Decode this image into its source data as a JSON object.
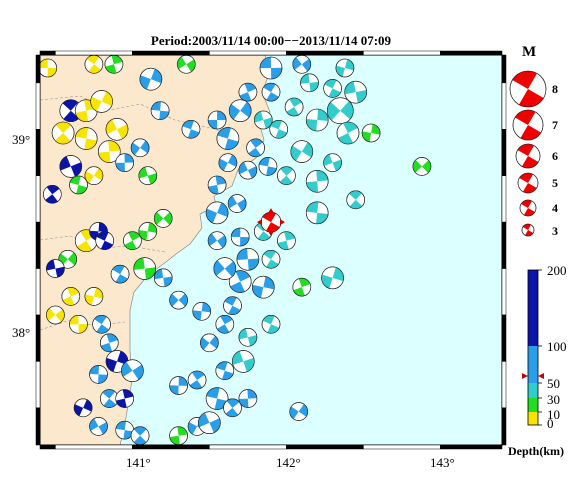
{
  "title": "Period:2003/11/14 00:00−−2013/11/14 07:09",
  "axes": {
    "lat_labels": [
      "39°",
      "38°"
    ],
    "lon_labels": [
      "141°",
      "142°",
      "143°"
    ]
  },
  "magnitude_legend": {
    "title": "M",
    "items": [
      "8",
      "7",
      "6",
      "5",
      "4",
      "3"
    ]
  },
  "depth_legend": {
    "title": "Depth(km)",
    "ticks": [
      "200",
      "100",
      "50",
      "30",
      "10",
      "0"
    ],
    "colors": {
      "0-10": "#f7e400",
      "10-30": "#22dd22",
      "30-50": "#33cccc",
      "50-100": "#2a9ee8",
      "100-200": "#0b14a8"
    }
  },
  "colors": {
    "sea": "#dcffff",
    "land": "#fce8cc",
    "highlight": "#ee0000"
  },
  "chart_data": {
    "type": "scatter",
    "x_axis": "longitude",
    "y_axis": "latitude",
    "xlim": [
      140.4,
      143.4
    ],
    "ylim": [
      37.3,
      39.4
    ],
    "highlight_event": {
      "lon": 141.9,
      "lat": 38.5,
      "magnitude": 5,
      "color": "red"
    },
    "events": [
      {
        "lon": 140.45,
        "lat": 39.33,
        "m": 3,
        "c": "yellow"
      },
      {
        "lon": 140.75,
        "lat": 39.35,
        "m": 3,
        "c": "yellow"
      },
      {
        "lon": 140.88,
        "lat": 39.35,
        "m": 3,
        "c": "green"
      },
      {
        "lon": 141.12,
        "lat": 39.27,
        "m": 4,
        "c": "blue"
      },
      {
        "lon": 141.35,
        "lat": 39.35,
        "m": 3,
        "c": "green"
      },
      {
        "lon": 141.18,
        "lat": 39.1,
        "m": 3,
        "c": "blue"
      },
      {
        "lon": 140.6,
        "lat": 39.1,
        "m": 4,
        "c": "dblue"
      },
      {
        "lon": 140.7,
        "lat": 39.1,
        "m": 4,
        "c": "yellow"
      },
      {
        "lon": 140.8,
        "lat": 39.15,
        "m": 4,
        "c": "yellow"
      },
      {
        "lon": 140.9,
        "lat": 39.0,
        "m": 4,
        "c": "yellow"
      },
      {
        "lon": 140.7,
        "lat": 38.95,
        "m": 4,
        "c": "yellow"
      },
      {
        "lon": 140.55,
        "lat": 38.98,
        "m": 4,
        "c": "yellow"
      },
      {
        "lon": 140.85,
        "lat": 38.88,
        "m": 4,
        "c": "yellow"
      },
      {
        "lon": 140.75,
        "lat": 38.75,
        "m": 3,
        "c": "yellow"
      },
      {
        "lon": 140.6,
        "lat": 38.8,
        "m": 4,
        "c": "dblue"
      },
      {
        "lon": 140.65,
        "lat": 38.7,
        "m": 3,
        "c": "green"
      },
      {
        "lon": 140.48,
        "lat": 38.65,
        "m": 3,
        "c": "dblue"
      },
      {
        "lon": 140.95,
        "lat": 38.82,
        "m": 3,
        "c": "blue"
      },
      {
        "lon": 141.05,
        "lat": 38.9,
        "m": 3,
        "c": "blue"
      },
      {
        "lon": 141.1,
        "lat": 38.75,
        "m": 3,
        "c": "green"
      },
      {
        "lon": 141.38,
        "lat": 39.0,
        "m": 3,
        "c": "blue"
      },
      {
        "lon": 140.7,
        "lat": 38.4,
        "m": 4,
        "c": "yellow"
      },
      {
        "lon": 140.78,
        "lat": 38.45,
        "m": 3,
        "c": "dblue"
      },
      {
        "lon": 140.58,
        "lat": 38.3,
        "m": 3,
        "c": "green"
      },
      {
        "lon": 140.5,
        "lat": 38.25,
        "m": 3,
        "c": "dblue"
      },
      {
        "lon": 140.82,
        "lat": 38.4,
        "m": 3,
        "c": "dblue"
      },
      {
        "lon": 141.0,
        "lat": 38.4,
        "m": 3,
        "c": "green"
      },
      {
        "lon": 141.1,
        "lat": 38.45,
        "m": 3,
        "c": "green"
      },
      {
        "lon": 141.2,
        "lat": 38.52,
        "m": 3,
        "c": "green"
      },
      {
        "lon": 141.08,
        "lat": 38.25,
        "m": 4,
        "c": "green"
      },
      {
        "lon": 140.92,
        "lat": 38.22,
        "m": 3,
        "c": "blue"
      },
      {
        "lon": 140.6,
        "lat": 38.1,
        "m": 3,
        "c": "yellow"
      },
      {
        "lon": 140.75,
        "lat": 38.1,
        "m": 3,
        "c": "yellow"
      },
      {
        "lon": 140.5,
        "lat": 38.0,
        "m": 3,
        "c": "yellow"
      },
      {
        "lon": 140.65,
        "lat": 37.95,
        "m": 3,
        "c": "yellow"
      },
      {
        "lon": 140.8,
        "lat": 37.95,
        "m": 3,
        "c": "blue"
      },
      {
        "lon": 140.85,
        "lat": 37.85,
        "m": 3,
        "c": "blue"
      },
      {
        "lon": 140.9,
        "lat": 37.75,
        "m": 4,
        "c": "dblue"
      },
      {
        "lon": 141.0,
        "lat": 37.7,
        "m": 4,
        "c": "blue"
      },
      {
        "lon": 140.78,
        "lat": 37.68,
        "m": 3,
        "c": "blue"
      },
      {
        "lon": 140.85,
        "lat": 37.55,
        "m": 3,
        "c": "blue"
      },
      {
        "lon": 140.95,
        "lat": 37.55,
        "m": 3,
        "c": "dblue"
      },
      {
        "lon": 140.68,
        "lat": 37.5,
        "m": 3,
        "c": "dblue"
      },
      {
        "lon": 140.78,
        "lat": 37.4,
        "m": 3,
        "c": "blue"
      },
      {
        "lon": 140.95,
        "lat": 37.38,
        "m": 3,
        "c": "blue"
      },
      {
        "lon": 141.05,
        "lat": 37.35,
        "m": 3,
        "c": "blue"
      },
      {
        "lon": 141.3,
        "lat": 37.35,
        "m": 3,
        "c": "green"
      },
      {
        "lon": 141.42,
        "lat": 37.4,
        "m": 3,
        "c": "blue"
      },
      {
        "lon": 141.5,
        "lat": 37.42,
        "m": 4,
        "c": "blue"
      },
      {
        "lon": 141.55,
        "lat": 37.55,
        "m": 4,
        "c": "blue"
      },
      {
        "lon": 141.65,
        "lat": 37.5,
        "m": 3,
        "c": "blue"
      },
      {
        "lon": 141.75,
        "lat": 37.55,
        "m": 3,
        "c": "blue"
      },
      {
        "lon": 142.08,
        "lat": 37.48,
        "m": 3,
        "c": "blue"
      },
      {
        "lon": 141.72,
        "lat": 37.75,
        "m": 4,
        "c": "teal"
      },
      {
        "lon": 141.6,
        "lat": 37.7,
        "m": 3,
        "c": "blue"
      },
      {
        "lon": 141.42,
        "lat": 37.65,
        "m": 3,
        "c": "blue"
      },
      {
        "lon": 141.3,
        "lat": 37.62,
        "m": 3,
        "c": "blue"
      },
      {
        "lon": 141.5,
        "lat": 37.85,
        "m": 3,
        "c": "blue"
      },
      {
        "lon": 141.75,
        "lat": 37.88,
        "m": 3,
        "c": "teal"
      },
      {
        "lon": 141.9,
        "lat": 37.95,
        "m": 3,
        "c": "teal"
      },
      {
        "lon": 141.6,
        "lat": 37.95,
        "m": 3,
        "c": "blue"
      },
      {
        "lon": 141.45,
        "lat": 38.02,
        "m": 3,
        "c": "blue"
      },
      {
        "lon": 141.3,
        "lat": 38.08,
        "m": 3,
        "c": "blue"
      },
      {
        "lon": 141.2,
        "lat": 38.2,
        "m": 3,
        "c": "blue"
      },
      {
        "lon": 141.65,
        "lat": 38.05,
        "m": 3,
        "c": "blue"
      },
      {
        "lon": 141.7,
        "lat": 38.18,
        "m": 4,
        "c": "blue"
      },
      {
        "lon": 141.85,
        "lat": 38.15,
        "m": 4,
        "c": "blue"
      },
      {
        "lon": 141.6,
        "lat": 38.25,
        "m": 4,
        "c": "blue"
      },
      {
        "lon": 141.75,
        "lat": 38.3,
        "m": 4,
        "c": "blue"
      },
      {
        "lon": 141.9,
        "lat": 38.3,
        "m": 3,
        "c": "teal"
      },
      {
        "lon": 142.1,
        "lat": 38.15,
        "m": 3,
        "c": "green"
      },
      {
        "lon": 142.3,
        "lat": 38.2,
        "m": 4,
        "c": "teal"
      },
      {
        "lon": 141.55,
        "lat": 38.4,
        "m": 3,
        "c": "blue"
      },
      {
        "lon": 141.7,
        "lat": 38.42,
        "m": 3,
        "c": "blue"
      },
      {
        "lon": 141.85,
        "lat": 38.45,
        "m": 3,
        "c": "teal"
      },
      {
        "lon": 142.0,
        "lat": 38.4,
        "m": 3,
        "c": "teal"
      },
      {
        "lon": 141.55,
        "lat": 38.55,
        "m": 4,
        "c": "blue"
      },
      {
        "lon": 141.68,
        "lat": 38.6,
        "m": 3,
        "c": "blue"
      },
      {
        "lon": 142.2,
        "lat": 38.55,
        "m": 4,
        "c": "teal"
      },
      {
        "lon": 142.45,
        "lat": 38.62,
        "m": 3,
        "c": "teal"
      },
      {
        "lon": 141.55,
        "lat": 38.7,
        "m": 3,
        "c": "blue"
      },
      {
        "lon": 141.62,
        "lat": 38.82,
        "m": 3,
        "c": "blue"
      },
      {
        "lon": 141.75,
        "lat": 38.78,
        "m": 3,
        "c": "blue"
      },
      {
        "lon": 141.88,
        "lat": 38.8,
        "m": 3,
        "c": "blue"
      },
      {
        "lon": 142.0,
        "lat": 38.75,
        "m": 3,
        "c": "teal"
      },
      {
        "lon": 142.2,
        "lat": 38.72,
        "m": 4,
        "c": "teal"
      },
      {
        "lon": 142.1,
        "lat": 38.88,
        "m": 4,
        "c": "teal"
      },
      {
        "lon": 142.3,
        "lat": 38.82,
        "m": 3,
        "c": "teal"
      },
      {
        "lon": 141.62,
        "lat": 38.95,
        "m": 4,
        "c": "blue"
      },
      {
        "lon": 141.8,
        "lat": 38.9,
        "m": 3,
        "c": "blue"
      },
      {
        "lon": 141.55,
        "lat": 39.05,
        "m": 3,
        "c": "blue"
      },
      {
        "lon": 141.7,
        "lat": 39.1,
        "m": 4,
        "c": "blue"
      },
      {
        "lon": 141.85,
        "lat": 39.05,
        "m": 3,
        "c": "teal"
      },
      {
        "lon": 141.95,
        "lat": 39.0,
        "m": 3,
        "c": "teal"
      },
      {
        "lon": 142.05,
        "lat": 39.12,
        "m": 3,
        "c": "teal"
      },
      {
        "lon": 142.2,
        "lat": 39.05,
        "m": 4,
        "c": "teal"
      },
      {
        "lon": 142.35,
        "lat": 39.1,
        "m": 5,
        "c": "teal"
      },
      {
        "lon": 142.45,
        "lat": 39.2,
        "m": 4,
        "c": "teal"
      },
      {
        "lon": 142.3,
        "lat": 39.22,
        "m": 3,
        "c": "teal"
      },
      {
        "lon": 142.4,
        "lat": 38.98,
        "m": 4,
        "c": "teal"
      },
      {
        "lon": 142.55,
        "lat": 38.98,
        "m": 3,
        "c": "green"
      },
      {
        "lon": 142.88,
        "lat": 38.8,
        "m": 3,
        "c": "green"
      },
      {
        "lon": 142.15,
        "lat": 39.25,
        "m": 3,
        "c": "teal"
      },
      {
        "lon": 141.9,
        "lat": 39.2,
        "m": 3,
        "c": "blue"
      },
      {
        "lon": 141.75,
        "lat": 39.2,
        "m": 3,
        "c": "blue"
      },
      {
        "lon": 142.38,
        "lat": 39.33,
        "m": 3,
        "c": "teal"
      },
      {
        "lon": 142.1,
        "lat": 39.35,
        "m": 3,
        "c": "blue"
      },
      {
        "lon": 141.9,
        "lat": 39.33,
        "m": 4,
        "c": "blue"
      }
    ]
  }
}
